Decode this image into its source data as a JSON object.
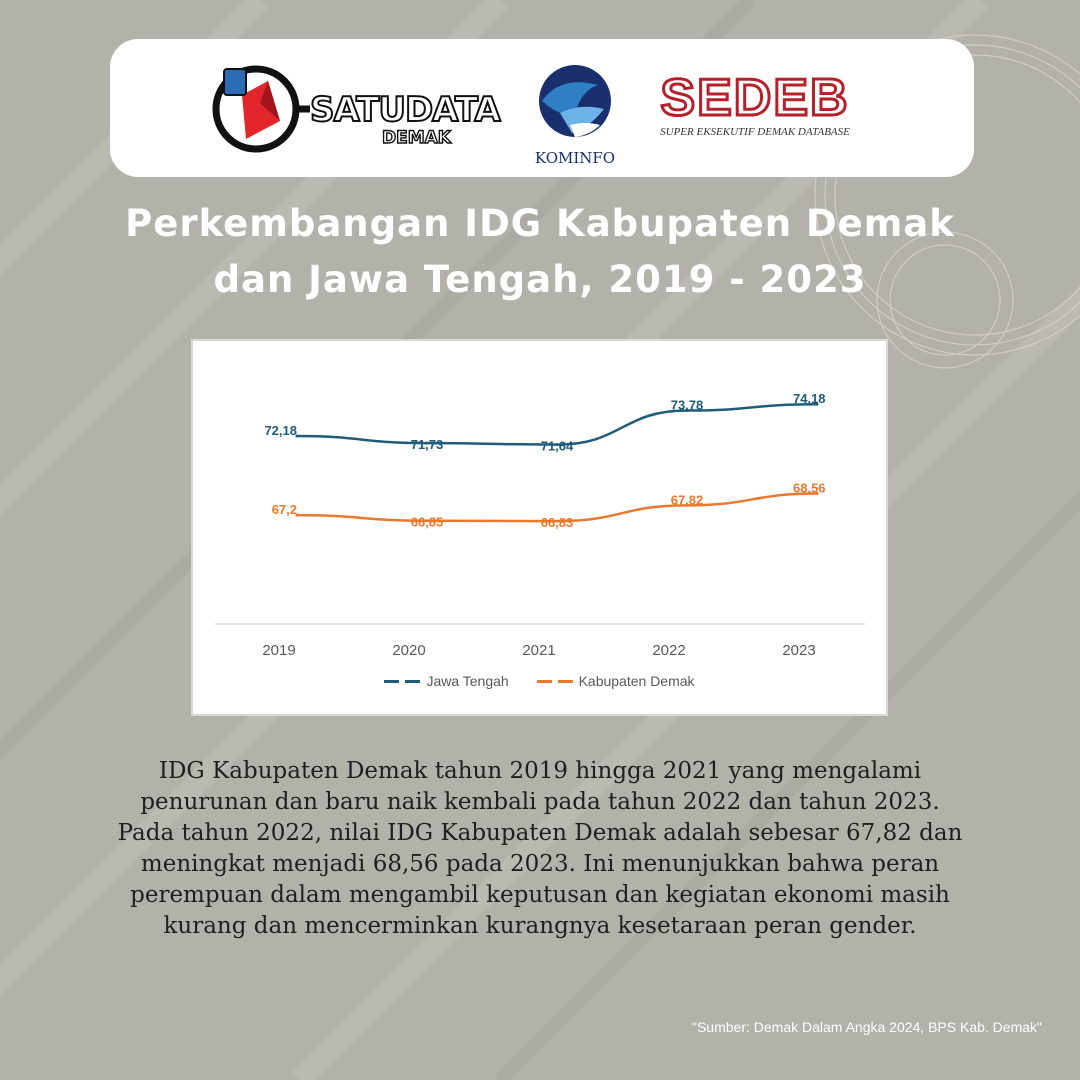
{
  "logos": {
    "satudata": {
      "main": "SATUDATA",
      "sub": "DEMAK"
    },
    "kominfo": {
      "name": "KOMINFO"
    },
    "sedeb": {
      "name": "SEDEB",
      "tagline": "SUPER EKSEKUTIF DEMAK DATABASE"
    }
  },
  "title_lines": [
    "Perkembangan IDG Kabupaten Demak",
    "dan Jawa Tengah, 2019 - 2023"
  ],
  "chart_data": {
    "type": "line",
    "x": [
      "2019",
      "2020",
      "2021",
      "2022",
      "2023"
    ],
    "series": [
      {
        "name": "Jawa Tengah",
        "values": [
          72.18,
          71.73,
          71.64,
          73.78,
          74.18
        ],
        "labels": [
          "72,18",
          "71,73",
          "71,64",
          "73,78",
          "74,18"
        ],
        "color": "#1f5c7a"
      },
      {
        "name": "Kabupaten Demak",
        "values": [
          67.2,
          66.85,
          66.83,
          67.82,
          68.56
        ],
        "labels": [
          "67,2",
          "66,85",
          "66,83",
          "67,82",
          "68,56"
        ],
        "color": "#e8792d"
      }
    ],
    "grid": false,
    "legend": "bottom",
    "title": "",
    "xlabel": "",
    "ylabel": ""
  },
  "description": "IDG Kabupaten Demak tahun 2019 hingga 2021 yang mengalami penurunan dan baru naik kembali pada tahun 2022 dan tahun 2023. Pada tahun 2022, nilai IDG Kabupaten Demak adalah sebesar 67,82 dan meningkat menjadi 68,56 pada 2023. Ini menunjukkan bahwa peran perempuan dalam mengambil keputusan dan kegiatan ekonomi masih kurang dan mencerminkan kurangnya kesetaraan peran gender.",
  "source": "\"Sumber: Demak Dalam Angka 2024, BPS Kab. Demak\""
}
